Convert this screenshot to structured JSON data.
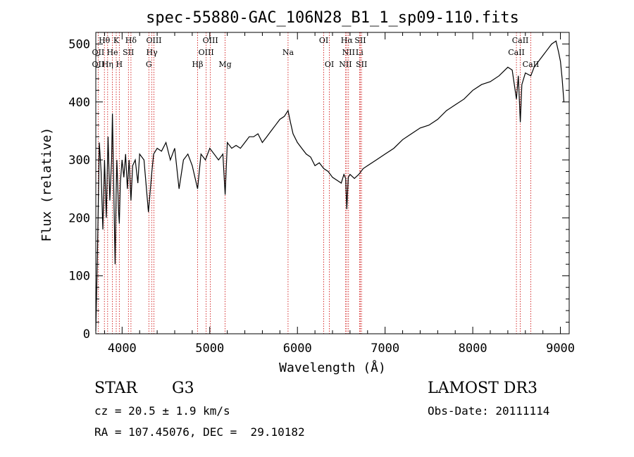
{
  "chart_data": {
    "type": "line",
    "title": "spec-55880-GAC_106N28_B1_1_sp09-110.fits",
    "xlabel": "Wavelength (Å)",
    "ylabel": "Flux (relative)",
    "xlim": [
      3700,
      9100
    ],
    "ylim": [
      0,
      520
    ],
    "xticks": [
      4000,
      5000,
      6000,
      7000,
      8000,
      9000
    ],
    "yticks": [
      0,
      100,
      200,
      300,
      400,
      500
    ],
    "series": [
      {
        "name": "flux",
        "x": [
          3700,
          3720,
          3740,
          3760,
          3780,
          3800,
          3820,
          3840,
          3860,
          3880,
          3890,
          3900,
          3920,
          3933,
          3940,
          3960,
          3968,
          3980,
          4000,
          4020,
          4040,
          4060,
          4080,
          4101,
          4120,
          4150,
          4180,
          4200,
          4250,
          4300,
          4340,
          4360,
          4400,
          4450,
          4500,
          4550,
          4600,
          4650,
          4700,
          4750,
          4800,
          4861,
          4900,
          4950,
          5000,
          5050,
          5100,
          5150,
          5175,
          5200,
          5250,
          5300,
          5350,
          5400,
          5450,
          5500,
          5550,
          5600,
          5650,
          5700,
          5750,
          5800,
          5850,
          5893,
          5920,
          5950,
          6000,
          6050,
          6100,
          6150,
          6200,
          6250,
          6300,
          6350,
          6400,
          6450,
          6500,
          6530,
          6550,
          6563,
          6580,
          6600,
          6650,
          6700,
          6750,
          6800,
          6900,
          7000,
          7100,
          7200,
          7300,
          7400,
          7500,
          7600,
          7700,
          7800,
          7900,
          8000,
          8100,
          8200,
          8300,
          8400,
          8450,
          8498,
          8520,
          8542,
          8560,
          8600,
          8662,
          8700,
          8750,
          8800,
          8850,
          8900,
          8950,
          8980,
          9000,
          9020,
          9040
        ],
        "values": [
          5,
          150,
          330,
          280,
          180,
          300,
          200,
          340,
          230,
          300,
          380,
          290,
          120,
          250,
          300,
          210,
          190,
          260,
          300,
          270,
          310,
          250,
          300,
          230,
          290,
          300,
          260,
          310,
          300,
          210,
          280,
          310,
          320,
          315,
          330,
          300,
          320,
          250,
          300,
          310,
          290,
          250,
          310,
          300,
          320,
          310,
          300,
          310,
          240,
          330,
          320,
          325,
          320,
          330,
          340,
          340,
          345,
          330,
          340,
          350,
          360,
          370,
          375,
          385,
          365,
          345,
          330,
          320,
          310,
          305,
          290,
          295,
          285,
          280,
          270,
          265,
          260,
          275,
          268,
          215,
          270,
          275,
          268,
          275,
          285,
          290,
          300,
          310,
          320,
          335,
          345,
          355,
          360,
          370,
          385,
          395,
          405,
          420,
          430,
          435,
          445,
          460,
          455,
          405,
          445,
          365,
          430,
          450,
          445,
          460,
          470,
          480,
          490,
          500,
          505,
          485,
          470,
          440,
          400
        ]
      }
    ],
    "lines_top": [
      {
        "label": "Hθ",
        "wl": 3798,
        "row": 0
      },
      {
        "label": "K",
        "wl": 3933,
        "row": 0
      },
      {
        "label": "Hδ",
        "wl": 4101,
        "row": 0
      },
      {
        "label": "OIII",
        "wl": 4363,
        "row": 0
      },
      {
        "label": "OIII",
        "wl": 5007,
        "row": 0
      },
      {
        "label": "OI",
        "wl": 6300,
        "row": 0
      },
      {
        "label": "Hα",
        "wl": 6563,
        "row": 0
      },
      {
        "label": "SII",
        "wl": 6717,
        "row": 0
      },
      {
        "label": "CaII",
        "wl": 8542,
        "row": 0
      },
      {
        "label": "OII",
        "wl": 3727,
        "row": 1
      },
      {
        "label": "He",
        "wl": 3889,
        "row": 1
      },
      {
        "label": "SII",
        "wl": 4072,
        "row": 1
      },
      {
        "label": "Hγ",
        "wl": 4340,
        "row": 1
      },
      {
        "label": "OIII",
        "wl": 4959,
        "row": 1
      },
      {
        "label": "Na",
        "wl": 5893,
        "row": 1
      },
      {
        "label": "NII",
        "wl": 6583,
        "row": 1
      },
      {
        "label": "Li",
        "wl": 6708,
        "row": 1
      },
      {
        "label": "CaII",
        "wl": 8498,
        "row": 1
      }
    ],
    "lines_bottom": [
      {
        "label": "OII",
        "wl": 3727
      },
      {
        "label": "Hη",
        "wl": 3835
      },
      {
        "label": "H",
        "wl": 3968
      },
      {
        "label": "G",
        "wl": 4305
      },
      {
        "label": "Hβ",
        "wl": 4861
      },
      {
        "label": "Mg",
        "wl": 5175
      },
      {
        "label": "OI",
        "wl": 6364
      },
      {
        "label": "NII",
        "wl": 6548
      },
      {
        "label": "SII",
        "wl": 6731
      },
      {
        "label": "CaII",
        "wl": 8662
      }
    ]
  },
  "info": {
    "object_class": "STAR",
    "subclass": "G3",
    "survey": "LAMOST DR3",
    "redshift": "cz = 20.5 ± 1.9 km/s",
    "obs_date": "Obs-Date: 20111114",
    "coords": "RA = 107.45076, DEC =  29.10182"
  }
}
